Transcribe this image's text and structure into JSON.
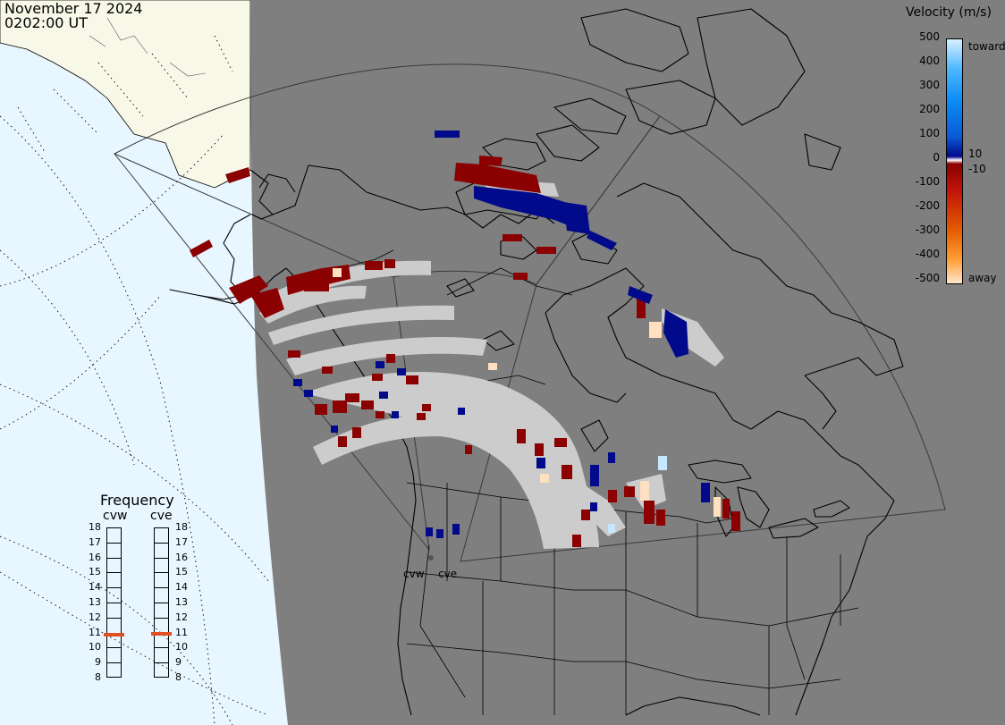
{
  "header": {
    "date": "November 17 2024",
    "time": "0202:00 UT"
  },
  "colorbar": {
    "title": "Velocity (m/s)",
    "ticks": [
      "500",
      "400",
      "300",
      "200",
      "100",
      "10",
      "0",
      "-10",
      "-100",
      "-200",
      "-300",
      "-400",
      "-500"
    ],
    "toward_label": "toward",
    "away_label": "away",
    "colors": {
      "toward_max": "#d7f1ff",
      "toward_mid": "#0b8df5",
      "toward_min": "#000a8a",
      "away_min": "#8b0000",
      "away_mid": "#e45a00",
      "away_max": "#ffe7cc",
      "ground_scatter": "#cccccc"
    }
  },
  "frequency": {
    "title": "Frequency",
    "radars": [
      {
        "code": "cvw",
        "frequency_mhz": 10.85
      },
      {
        "code": "cve",
        "frequency_mhz": 10.9
      }
    ],
    "ticks": [
      "18",
      "17",
      "16",
      "15",
      "14",
      "13",
      "12",
      "11",
      "10",
      "9",
      "8"
    ]
  },
  "sites": [
    "cvw",
    "cve"
  ],
  "colors": {
    "night": "#7f7f7f",
    "day_ocean": "#e8f6ff",
    "day_land": "#f8f8e8",
    "coastline": "#000000",
    "marker": "#e05020"
  }
}
